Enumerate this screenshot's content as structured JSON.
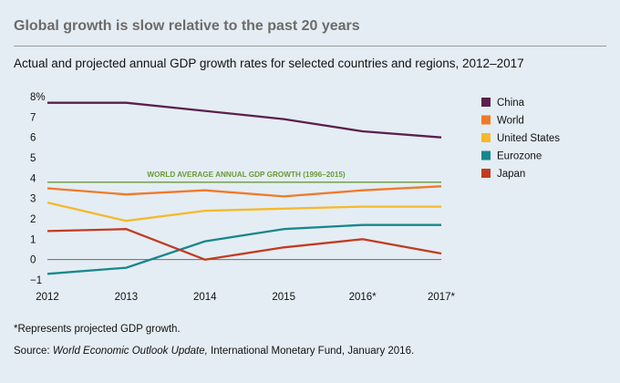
{
  "header": {
    "title": "Global growth is slow relative to the past 20 years",
    "subtitle": "Actual and projected annual GDP growth rates for selected countries and regions, 2012–2017"
  },
  "chart_data": {
    "type": "line",
    "x": [
      "2012",
      "2013",
      "2014",
      "2015",
      "2016*",
      "2017*"
    ],
    "ylim": [
      -1,
      8
    ],
    "yticks": [
      "8%",
      "7",
      "6",
      "5",
      "4",
      "3",
      "2",
      "1",
      "0",
      "−1"
    ],
    "ytick_values": [
      8,
      7,
      6,
      5,
      4,
      3,
      2,
      1,
      0,
      -1
    ],
    "series": [
      {
        "name": "China",
        "color": "#5b1f4e",
        "values": [
          7.7,
          7.7,
          7.3,
          6.9,
          6.3,
          6.0
        ]
      },
      {
        "name": "World",
        "color": "#ef7a2a",
        "values": [
          3.5,
          3.2,
          3.4,
          3.1,
          3.4,
          3.6
        ]
      },
      {
        "name": "United States",
        "color": "#f5b92a",
        "values": [
          2.8,
          1.9,
          2.4,
          2.5,
          2.6,
          2.6
        ]
      },
      {
        "name": "Eurozone",
        "color": "#18878d",
        "values": [
          -0.7,
          -0.4,
          0.9,
          1.5,
          1.7,
          1.7
        ]
      },
      {
        "name": "Japan",
        "color": "#c23b22",
        "values": [
          1.4,
          1.5,
          0.0,
          0.6,
          1.0,
          0.3
        ]
      }
    ],
    "reference_line": {
      "label": "WORLD AVERAGE ANNUAL GDP GROWTH (1996–2015)",
      "value": 3.8,
      "color": "#6a9a3a"
    },
    "legend_position": "right",
    "grid": false
  },
  "footer": {
    "footnote": "*Represents projected GDP growth.",
    "source_prefix": "Source: ",
    "source_title": "World Economic Outlook Update,",
    "source_rest": " International Monetary Fund, January 2016."
  }
}
